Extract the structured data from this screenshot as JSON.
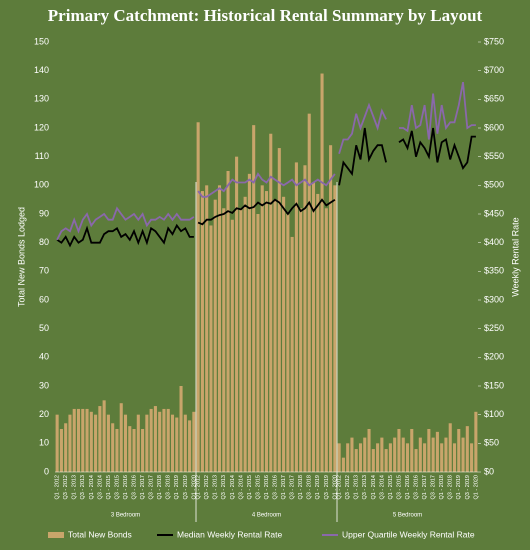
{
  "chart_data": {
    "type": "bar-line",
    "title": "Primary Catchment: Historical Rental Summary by Layout",
    "y_label": "Total New Bonds Lodged",
    "y2_label": "Weekly Rental Rate",
    "ylim": [
      0,
      150
    ],
    "yticks": [
      0,
      10,
      20,
      30,
      40,
      50,
      60,
      70,
      80,
      90,
      100,
      110,
      120,
      130,
      140,
      150
    ],
    "y2lim": [
      0,
      750
    ],
    "y2ticks": [
      {
        "value": 0,
        "label": "$0"
      },
      {
        "value": 50,
        "label": "$50"
      },
      {
        "value": 100,
        "label": "$100"
      },
      {
        "value": 150,
        "label": "$150"
      },
      {
        "value": 200,
        "label": "$200"
      },
      {
        "value": 250,
        "label": "$250"
      },
      {
        "value": 300,
        "label": "$300"
      },
      {
        "value": 350,
        "label": "$350"
      },
      {
        "value": 400,
        "label": "$400"
      },
      {
        "value": 450,
        "label": "$450"
      },
      {
        "value": 500,
        "label": "$500"
      },
      {
        "value": 550,
        "label": "$550"
      },
      {
        "value": 600,
        "label": "$600"
      },
      {
        "value": 650,
        "label": "$650"
      },
      {
        "value": 700,
        "label": "$700"
      },
      {
        "value": 750,
        "label": "$750"
      }
    ],
    "grid": false,
    "groups": [
      {
        "label": "3 Bedroom",
        "categories": [
          "Q1 - 2012",
          null,
          "Q3 - 2012",
          null,
          "Q1 - 2013",
          null,
          "Q3 - 2013",
          null,
          "Q1 - 2014",
          null,
          "Q3 - 2014",
          null,
          "Q1 - 2015",
          null,
          "Q3 - 2015",
          null,
          "Q1 - 2016",
          null,
          "Q3 - 2016",
          null,
          "Q1 - 2017",
          null,
          "Q3 - 2017",
          null,
          "Q1 - 2018",
          null,
          "Q3 - 2018",
          null,
          "Q1 - 2019",
          null,
          "Q3 - 2019",
          null,
          "Q1 - 2020"
        ]
      },
      {
        "label": "4 Bedroom",
        "categories": [
          "Q1 - 2012",
          null,
          "Q3 - 2012",
          null,
          "Q1 - 2013",
          null,
          "Q3 - 2013",
          null,
          "Q1 - 2014",
          null,
          "Q3 - 2014",
          null,
          "Q1 - 2015",
          null,
          "Q3 - 2015",
          null,
          "Q1 - 2016",
          null,
          "Q3 - 2016",
          null,
          "Q1 - 2017",
          null,
          "Q3 - 2017",
          null,
          "Q1 - 2018",
          null,
          "Q3 - 2018",
          null,
          "Q1 - 2019",
          null,
          "Q3 - 2019",
          null,
          "Q1 - 2020"
        ]
      },
      {
        "label": "5 Bedroom",
        "categories": [
          "Q1 - 2012",
          null,
          "Q3 - 2012",
          null,
          "Q1 - 2013",
          null,
          "Q3 - 2013",
          null,
          "Q1 - 2014",
          null,
          "Q3 - 2014",
          null,
          "Q1 - 2015",
          null,
          "Q3 - 2015",
          null,
          "Q1 - 2016",
          null,
          "Q3 - 2016",
          null,
          "Q1 - 2017",
          null,
          "Q3 - 2017",
          null,
          "Q1 - 2018",
          null,
          "Q3 - 2018",
          null,
          "Q1 - 2019",
          null,
          "Q3 - 2019",
          null,
          "Q1 - 2020"
        ]
      }
    ],
    "series": [
      {
        "name": "Total New Bonds",
        "type": "bar",
        "color": "#c9a56b",
        "values": [
          20,
          15,
          17,
          20,
          22,
          22,
          22,
          22,
          21,
          20,
          23,
          25,
          20,
          17,
          15,
          24,
          20,
          16,
          15,
          20,
          15,
          20,
          22,
          23,
          21,
          22,
          22,
          20,
          19,
          30,
          20,
          18,
          21,
          122,
          98,
          100,
          86,
          95,
          100,
          92,
          105,
          88,
          110,
          92,
          96,
          104,
          121,
          90,
          100,
          98,
          118,
          95,
          113,
          96,
          90,
          82,
          108,
          92,
          107,
          125,
          101,
          97,
          139,
          92,
          114,
          100,
          10,
          5,
          10,
          12,
          8,
          10,
          12,
          15,
          8,
          10,
          12,
          8,
          10,
          12,
          15,
          12,
          10,
          15,
          8,
          12,
          10,
          15,
          12,
          14,
          10,
          12,
          17,
          10,
          15,
          12,
          16,
          10,
          21
        ]
      },
      {
        "name": "Median Weekly Rental Rate",
        "type": "line",
        "axis": "y2",
        "color": "#000000",
        "values": [
          405,
          400,
          410,
          395,
          410,
          400,
          405,
          425,
          400,
          400,
          400,
          415,
          420,
          420,
          425,
          410,
          415,
          405,
          420,
          400,
          420,
          400,
          425,
          420,
          410,
          400,
          425,
          415,
          430,
          420,
          425,
          410,
          410,
          435,
          432,
          440,
          440,
          445,
          448,
          450,
          455,
          452,
          460,
          458,
          465,
          460,
          462,
          470,
          465,
          470,
          468,
          475,
          470,
          460,
          450,
          460,
          468,
          455,
          460,
          470,
          455,
          465,
          475,
          465,
          470,
          475,
          500,
          540,
          530,
          520,
          570,
          545,
          600,
          545,
          560,
          570,
          570,
          540,
          null,
          null,
          575,
          580,
          565,
          595,
          550,
          575,
          565,
          550,
          600,
          540,
          575,
          580,
          545,
          570,
          550,
          530,
          540,
          585,
          585
        ]
      },
      {
        "name": "Upper Quartile Weekly Rental Rate",
        "type": "line",
        "axis": "y2",
        "color": "#8a68ab",
        "values": [
          405,
          420,
          425,
          420,
          440,
          420,
          440,
          450,
          430,
          440,
          445,
          450,
          440,
          440,
          460,
          450,
          440,
          445,
          450,
          440,
          450,
          430,
          440,
          440,
          445,
          440,
          450,
          440,
          450,
          440,
          440,
          440,
          445,
          490,
          480,
          480,
          485,
          490,
          495,
          490,
          500,
          510,
          505,
          505,
          505,
          510,
          505,
          520,
          510,
          505,
          515,
          510,
          505,
          500,
          505,
          510,
          500,
          505,
          510,
          500,
          505,
          510,
          505,
          500,
          510,
          520,
          555,
          580,
          580,
          590,
          625,
          600,
          620,
          640,
          620,
          600,
          630,
          615,
          null,
          null,
          600,
          600,
          595,
          640,
          600,
          605,
          640,
          580,
          660,
          590,
          640,
          600,
          610,
          610,
          640,
          680,
          600,
          605,
          605
        ]
      }
    ]
  }
}
